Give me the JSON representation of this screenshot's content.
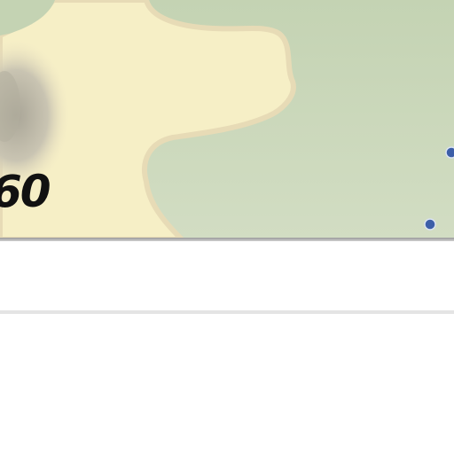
{
  "map": {
    "place_label": "60",
    "colors": {
      "land_green": "#c8d6b8",
      "land_yellow": "#f6efc6",
      "coast_halo": "#ece0ba",
      "relief_gray": "#bdb8aa",
      "marker_blue": "#3c5ea8"
    },
    "markers": [
      "blue-dot-marker",
      "blue-dot-marker"
    ]
  }
}
